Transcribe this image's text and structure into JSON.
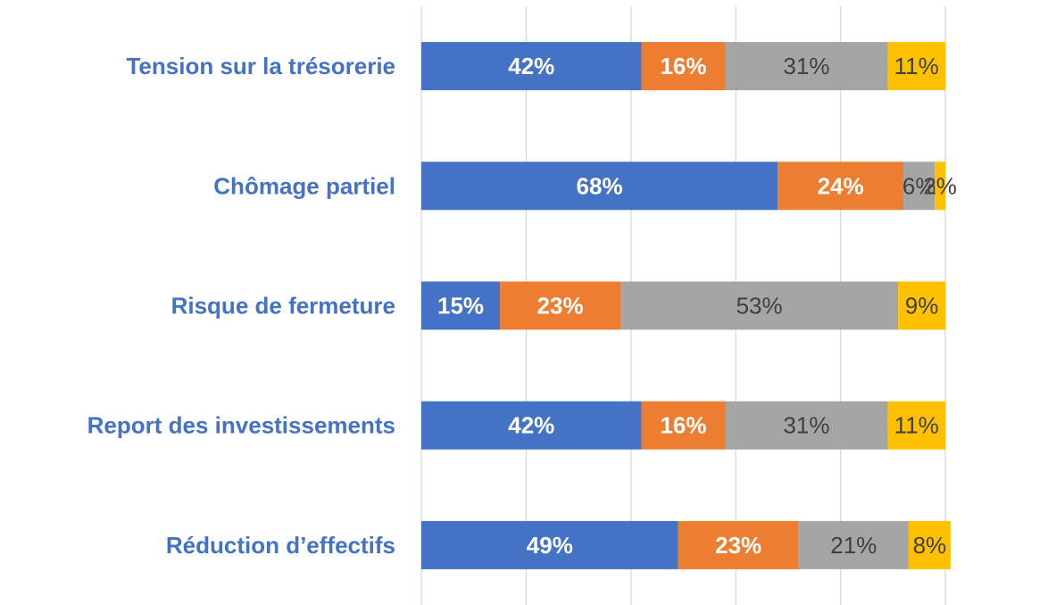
{
  "chart_data": {
    "type": "stacked_bar_horizontal",
    "categories": [
      "Tension sur la trésorerie",
      "Chômage partiel",
      "Risque de fermeture",
      "Report des investissements",
      "Réduction d’effectifs"
    ],
    "series": [
      {
        "color": "#4472c4",
        "values": [
          42,
          68,
          15,
          42,
          49
        ],
        "value_labels": [
          "42%",
          "68%",
          "15%",
          "42%",
          "49%"
        ]
      },
      {
        "color": "#ed7d31",
        "values": [
          16,
          24,
          23,
          16,
          23
        ],
        "value_labels": [
          "16%",
          "24%",
          "23%",
          "16%",
          "23%"
        ]
      },
      {
        "color": "#a5a5a5",
        "values": [
          31,
          6,
          53,
          31,
          21
        ],
        "value_labels": [
          "31%",
          "6%",
          "53%",
          "31%",
          "21%"
        ]
      },
      {
        "color": "#ffc000",
        "values": [
          11,
          2,
          9,
          11,
          8
        ],
        "value_labels": [
          "11%",
          "2%",
          "9%",
          "11%",
          "8%"
        ]
      }
    ],
    "xlim": [
      0,
      100
    ],
    "xticks": [
      0,
      20,
      40,
      60,
      80,
      100
    ],
    "grid": true
  }
}
